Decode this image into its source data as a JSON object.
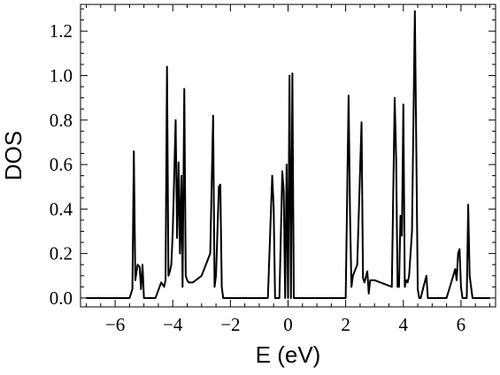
{
  "chart_data": {
    "type": "line",
    "xlabel": "E (eV)",
    "ylabel": "DOS",
    "xlim": [
      -7.2,
      7.2
    ],
    "ylim": [
      -0.04,
      1.32
    ],
    "grid": false,
    "legend": "none",
    "line_color": "#000000",
    "x_ticks": [
      -6,
      -4,
      -2,
      0,
      2,
      4,
      6
    ],
    "x_tick_labels": [
      "−6",
      "−4",
      "−2",
      "0",
      "2",
      "4",
      "6"
    ],
    "y_ticks": [
      0.0,
      0.2,
      0.4,
      0.6,
      0.8,
      1.0,
      1.2
    ],
    "y_tick_labels": [
      "0.0",
      "0.2",
      "0.4",
      "0.6",
      "0.8",
      "1.0",
      "1.2"
    ],
    "series": [
      {
        "x": [
          -7.0,
          -5.5,
          -5.4,
          -5.35,
          -5.3,
          -5.22,
          -5.15,
          -5.1,
          -5.05,
          -5.0,
          -4.9,
          -4.6,
          -4.4,
          -4.3,
          -4.25,
          -4.2,
          -4.15,
          -4.1,
          -4.05,
          -4.0,
          -3.9,
          -3.85,
          -3.8,
          -3.75,
          -3.7,
          -3.66,
          -3.6,
          -3.55,
          -3.5,
          -3.45,
          -3.3,
          -3.0,
          -2.7,
          -2.6,
          -2.55,
          -2.5,
          -2.4,
          -2.35,
          -2.3,
          -2.25,
          -2.2,
          -2.1,
          -1.5,
          -0.7,
          -0.55,
          -0.5,
          -0.45,
          -0.3,
          -0.2,
          -0.15,
          -0.1,
          -0.05,
          0.0,
          0.05,
          0.1,
          0.15,
          0.2,
          0.25,
          0.3,
          0.4,
          1.0,
          2.0,
          2.1,
          2.15,
          2.2,
          2.25,
          2.4,
          2.55,
          2.6,
          2.65,
          2.75,
          2.8,
          2.85,
          3.0,
          3.6,
          3.7,
          3.75,
          3.8,
          3.85,
          3.9,
          3.95,
          4.0,
          4.05,
          4.1,
          4.15,
          4.2,
          4.3,
          4.4,
          4.5,
          4.55,
          4.6,
          4.8,
          4.85,
          4.9,
          5.0,
          5.5,
          5.8,
          5.85,
          5.9,
          5.95,
          6.0,
          6.05,
          6.1,
          6.2,
          6.25,
          6.3,
          6.4,
          7.0
        ],
        "y": [
          0.0,
          0.0,
          0.04,
          0.66,
          0.08,
          0.15,
          0.14,
          0.04,
          0.15,
          0.0,
          0.0,
          0.0,
          0.07,
          0.05,
          0.08,
          1.04,
          0.1,
          0.12,
          0.15,
          0.3,
          0.8,
          0.27,
          0.61,
          0.2,
          0.55,
          0.05,
          0.94,
          0.1,
          0.08,
          0.07,
          0.07,
          0.1,
          0.2,
          0.82,
          0.05,
          0.1,
          0.5,
          0.51,
          0.05,
          0.0,
          0.0,
          0.0,
          0.0,
          0.0,
          0.55,
          0.41,
          0.0,
          0.0,
          0.57,
          0.48,
          0.0,
          0.6,
          0.0,
          1.0,
          0.0,
          1.01,
          0.0,
          0.0,
          0.0,
          0.0,
          0.0,
          0.0,
          0.91,
          0.38,
          0.05,
          0.1,
          0.15,
          0.79,
          0.09,
          0.07,
          0.12,
          0.02,
          0.08,
          0.08,
          0.05,
          0.9,
          0.63,
          0.05,
          0.05,
          0.37,
          0.28,
          0.87,
          0.05,
          0.08,
          0.07,
          0.1,
          0.3,
          1.29,
          0.04,
          0.0,
          0.0,
          0.1,
          0.0,
          0.0,
          0.0,
          0.0,
          0.13,
          0.08,
          0.2,
          0.22,
          0.05,
          0.0,
          0.0,
          0.0,
          0.42,
          0.1,
          0.0,
          0.0
        ]
      }
    ]
  }
}
